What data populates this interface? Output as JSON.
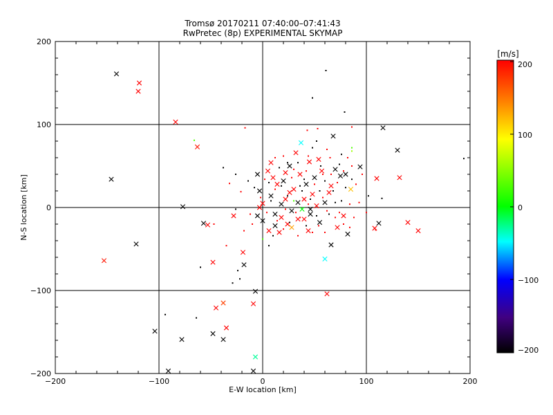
{
  "chart_data": {
    "type": "scatter",
    "title": "Tromsø 20170211 07:40:00–07:41:43",
    "subtitle": "RwPretec (8p) EXPERIMENTAL SKYMAP",
    "xlabel": "E-W location [km]",
    "ylabel": "N-S location [km]",
    "xlim": [
      -200,
      200
    ],
    "ylim": [
      -200,
      200
    ],
    "xticks": [
      "−200",
      "−100",
      "0",
      "100",
      "200"
    ],
    "yticks": [
      "−200",
      "−100",
      "0",
      "100",
      "200"
    ],
    "grid": true,
    "colorbar": {
      "label": "[m/s]",
      "range": [
        -200,
        200
      ],
      "ticks": [
        "200",
        "100",
        "0",
        "−100",
        "−200"
      ],
      "colors": [
        "#ff0000",
        "#ff8000",
        "#ffff00",
        "#00ff00",
        "#00ffff",
        "#0000ff",
        "#400080",
        "#000000"
      ]
    },
    "series_x_marks": [
      {
        "x": -141,
        "y": 161,
        "v": -200
      },
      {
        "x": -119,
        "y": 150,
        "v": 200
      },
      {
        "x": -120,
        "y": 140,
        "v": 200
      },
      {
        "x": -146,
        "y": 34,
        "v": -200
      },
      {
        "x": -122,
        "y": -44,
        "v": -200
      },
      {
        "x": -153,
        "y": -64,
        "v": 190
      },
      {
        "x": -84,
        "y": 103,
        "v": 200
      },
      {
        "x": -63,
        "y": 73,
        "v": 190
      },
      {
        "x": -77,
        "y": 1,
        "v": -200
      },
      {
        "x": -57,
        "y": -19,
        "v": -200
      },
      {
        "x": -53,
        "y": -21,
        "v": 200
      },
      {
        "x": -48,
        "y": -66,
        "v": 200
      },
      {
        "x": -45,
        "y": -121,
        "v": 200
      },
      {
        "x": -38,
        "y": -115,
        "v": 170
      },
      {
        "x": -35,
        "y": -145,
        "v": 200
      },
      {
        "x": -38,
        "y": -159,
        "v": -200
      },
      {
        "x": -48,
        "y": -152,
        "v": -200
      },
      {
        "x": -91,
        "y": -197,
        "v": -200
      },
      {
        "x": -78,
        "y": -159,
        "v": -200
      },
      {
        "x": -104,
        "y": -149,
        "v": -200
      },
      {
        "x": -28,
        "y": -10,
        "v": 200
      },
      {
        "x": -19,
        "y": -54,
        "v": 200
      },
      {
        "x": -18,
        "y": -69,
        "v": -200
      },
      {
        "x": -9,
        "y": -116,
        "v": 200
      },
      {
        "x": -7,
        "y": -101,
        "v": -200
      },
      {
        "x": -9,
        "y": -197,
        "v": -200
      },
      {
        "x": -7,
        "y": -180,
        "v": -30
      },
      {
        "x": -5,
        "y": 40,
        "v": -200
      },
      {
        "x": -3,
        "y": 20,
        "v": -200
      },
      {
        "x": 0,
        "y": 5,
        "v": 200
      },
      {
        "x": 5,
        "y": 44,
        "v": 200
      },
      {
        "x": 8,
        "y": 14,
        "v": -200
      },
      {
        "x": 12,
        "y": -8,
        "v": -200
      },
      {
        "x": 14,
        "y": 28,
        "v": 200
      },
      {
        "x": 18,
        "y": -12,
        "v": 200
      },
      {
        "x": 20,
        "y": 32,
        "v": -200
      },
      {
        "x": 22,
        "y": 10,
        "v": 200
      },
      {
        "x": 24,
        "y": -20,
        "v": 200
      },
      {
        "x": 26,
        "y": 50,
        "v": -200
      },
      {
        "x": 28,
        "y": -4,
        "v": -200
      },
      {
        "x": 30,
        "y": 22,
        "v": 200
      },
      {
        "x": 32,
        "y": 66,
        "v": 200
      },
      {
        "x": 34,
        "y": 6,
        "v": -200
      },
      {
        "x": 36,
        "y": 40,
        "v": 200
      },
      {
        "x": 37,
        "y": 78,
        "v": -50
      },
      {
        "x": 40,
        "y": -14,
        "v": 200
      },
      {
        "x": 42,
        "y": 28,
        "v": -200
      },
      {
        "x": 45,
        "y": 55,
        "v": 200
      },
      {
        "x": 46,
        "y": -8,
        "v": -200
      },
      {
        "x": 48,
        "y": 16,
        "v": 200
      },
      {
        "x": 50,
        "y": 36,
        "v": -200
      },
      {
        "x": 52,
        "y": 2,
        "v": 200
      },
      {
        "x": 55,
        "y": -18,
        "v": -200
      },
      {
        "x": 57,
        "y": 44,
        "v": 200
      },
      {
        "x": 60,
        "y": -62,
        "v": -50
      },
      {
        "x": 62,
        "y": -104,
        "v": 200
      },
      {
        "x": 64,
        "y": 18,
        "v": 200
      },
      {
        "x": 66,
        "y": -45,
        "v": -200
      },
      {
        "x": 68,
        "y": 86,
        "v": -200
      },
      {
        "x": 70,
        "y": 46,
        "v": -200
      },
      {
        "x": 72,
        "y": -24,
        "v": 200
      },
      {
        "x": 75,
        "y": 38,
        "v": -200
      },
      {
        "x": 78,
        "y": -10,
        "v": 200
      },
      {
        "x": 80,
        "y": 40,
        "v": -200
      },
      {
        "x": 82,
        "y": -32,
        "v": -200
      },
      {
        "x": 85,
        "y": 22,
        "v": 120
      },
      {
        "x": 94,
        "y": 49,
        "v": -200
      },
      {
        "x": 108,
        "y": -25,
        "v": 200
      },
      {
        "x": 110,
        "y": 35,
        "v": 200
      },
      {
        "x": 112,
        "y": -19,
        "v": -200
      },
      {
        "x": 116,
        "y": 96,
        "v": -200
      },
      {
        "x": 130,
        "y": 69,
        "v": -200
      },
      {
        "x": 132,
        "y": 36,
        "v": 200
      },
      {
        "x": 140,
        "y": -18,
        "v": 200
      },
      {
        "x": 150,
        "y": -28,
        "v": 200
      },
      {
        "x": 0,
        "y": -16,
        "v": -200
      },
      {
        "x": -5,
        "y": -10,
        "v": -200
      },
      {
        "x": 6,
        "y": -28,
        "v": 200
      },
      {
        "x": 16,
        "y": -30,
        "v": 200
      },
      {
        "x": 28,
        "y": -24,
        "v": 130
      },
      {
        "x": 44,
        "y": -28,
        "v": 200
      },
      {
        "x": 12,
        "y": -22,
        "v": -200
      },
      {
        "x": 34,
        "y": -14,
        "v": 200
      },
      {
        "x": 22,
        "y": 42,
        "v": 200
      },
      {
        "x": 8,
        "y": 54,
        "v": 200
      },
      {
        "x": -3,
        "y": 0,
        "v": 200
      },
      {
        "x": 18,
        "y": 4,
        "v": -200
      },
      {
        "x": 26,
        "y": 18,
        "v": 200
      },
      {
        "x": 54,
        "y": 58,
        "v": 200
      },
      {
        "x": 38,
        "y": -2,
        "v": 0
      },
      {
        "x": 46,
        "y": -2,
        "v": -200
      },
      {
        "x": 66,
        "y": 26,
        "v": 200
      },
      {
        "x": 60,
        "y": 6,
        "v": -200
      },
      {
        "x": 10,
        "y": 36,
        "v": 200
      },
      {
        "x": 40,
        "y": 10,
        "v": 200
      }
    ],
    "series_dots": [
      {
        "x": 61,
        "y": 165,
        "v": -200
      },
      {
        "x": 48,
        "y": 132,
        "v": -200
      },
      {
        "x": 79,
        "y": 115,
        "v": -200
      },
      {
        "x": 53,
        "y": 95,
        "v": 200
      },
      {
        "x": -17,
        "y": 96,
        "v": 200
      },
      {
        "x": 43,
        "y": 93,
        "v": 200
      },
      {
        "x": 86,
        "y": 97,
        "v": 200
      },
      {
        "x": -66,
        "y": 81,
        "v": 30
      },
      {
        "x": 86,
        "y": 72,
        "v": 30
      },
      {
        "x": 194,
        "y": 59,
        "v": -200
      },
      {
        "x": -38,
        "y": 48,
        "v": -200
      },
      {
        "x": -26,
        "y": 40,
        "v": -200
      },
      {
        "x": -32,
        "y": 29,
        "v": 200
      },
      {
        "x": -21,
        "y": 19,
        "v": 200
      },
      {
        "x": -26,
        "y": -2,
        "v": -200
      },
      {
        "x": -18,
        "y": -28,
        "v": 200
      },
      {
        "x": -35,
        "y": -46,
        "v": 200
      },
      {
        "x": -22,
        "y": -86,
        "v": -200
      },
      {
        "x": -24,
        "y": -76,
        "v": -200
      },
      {
        "x": -29,
        "y": -91,
        "v": -200
      },
      {
        "x": -60,
        "y": -72,
        "v": -200
      },
      {
        "x": -64,
        "y": -133,
        "v": -200
      },
      {
        "x": -94,
        "y": -129,
        "v": -200
      },
      {
        "x": 0,
        "y": -38,
        "v": 30
      },
      {
        "x": -47,
        "y": -20,
        "v": 200
      },
      {
        "x": 6,
        "y": 30,
        "v": -200
      },
      {
        "x": 12,
        "y": 22,
        "v": 200
      },
      {
        "x": 16,
        "y": 48,
        "v": -200
      },
      {
        "x": 20,
        "y": 62,
        "v": 200
      },
      {
        "x": 24,
        "y": 14,
        "v": -200
      },
      {
        "x": 28,
        "y": 36,
        "v": 200
      },
      {
        "x": 32,
        "y": -6,
        "v": 200
      },
      {
        "x": 34,
        "y": 54,
        "v": -200
      },
      {
        "x": 38,
        "y": 20,
        "v": -200
      },
      {
        "x": 42,
        "y": 44,
        "v": 200
      },
      {
        "x": 44,
        "y": 4,
        "v": 200
      },
      {
        "x": 48,
        "y": 72,
        "v": -200
      },
      {
        "x": 50,
        "y": 28,
        "v": 200
      },
      {
        "x": 52,
        "y": -10,
        "v": -200
      },
      {
        "x": 56,
        "y": 50,
        "v": -200
      },
      {
        "x": 58,
        "y": 12,
        "v": 200
      },
      {
        "x": 60,
        "y": 32,
        "v": -200
      },
      {
        "x": 62,
        "y": -4,
        "v": 200
      },
      {
        "x": 65,
        "y": 60,
        "v": 200
      },
      {
        "x": 68,
        "y": 20,
        "v": -200
      },
      {
        "x": 70,
        "y": -12,
        "v": 200
      },
      {
        "x": 72,
        "y": 30,
        "v": 200
      },
      {
        "x": 74,
        "y": 52,
        "v": -200
      },
      {
        "x": 76,
        "y": 8,
        "v": -200
      },
      {
        "x": 78,
        "y": -20,
        "v": 200
      },
      {
        "x": 80,
        "y": 24,
        "v": -200
      },
      {
        "x": 82,
        "y": 60,
        "v": 200
      },
      {
        "x": 84,
        "y": 4,
        "v": 200
      },
      {
        "x": 86,
        "y": 34,
        "v": -200
      },
      {
        "x": 88,
        "y": -12,
        "v": 200
      },
      {
        "x": 90,
        "y": 28,
        "v": 200
      },
      {
        "x": 93,
        "y": 6,
        "v": 200
      },
      {
        "x": 86,
        "y": 68,
        "v": 60
      },
      {
        "x": 102,
        "y": 14,
        "v": -200
      },
      {
        "x": 109,
        "y": -27,
        "v": 200
      },
      {
        "x": 115,
        "y": 11,
        "v": -200
      },
      {
        "x": 4,
        "y": -6,
        "v": 200
      },
      {
        "x": 8,
        "y": 8,
        "v": -200
      },
      {
        "x": 14,
        "y": -16,
        "v": 200
      },
      {
        "x": 18,
        "y": 26,
        "v": -200
      },
      {
        "x": 22,
        "y": -2,
        "v": 200
      },
      {
        "x": 26,
        "y": -18,
        "v": -200
      },
      {
        "x": 30,
        "y": 46,
        "v": 200
      },
      {
        "x": 36,
        "y": -12,
        "v": 200
      },
      {
        "x": 40,
        "y": 34,
        "v": -200
      },
      {
        "x": 46,
        "y": 10,
        "v": -200
      },
      {
        "x": 54,
        "y": -22,
        "v": 200
      },
      {
        "x": 58,
        "y": 40,
        "v": 200
      },
      {
        "x": 64,
        "y": -8,
        "v": -200
      },
      {
        "x": 66,
        "y": 40,
        "v": 200
      },
      {
        "x": -12,
        "y": -8,
        "v": 200
      },
      {
        "x": -8,
        "y": 24,
        "v": -200
      },
      {
        "x": -2,
        "y": 12,
        "v": 200
      },
      {
        "x": 2,
        "y": 34,
        "v": 200
      },
      {
        "x": 10,
        "y": -34,
        "v": -200
      },
      {
        "x": 20,
        "y": -26,
        "v": 200
      },
      {
        "x": 30,
        "y": 8,
        "v": 30
      },
      {
        "x": 36,
        "y": 26,
        "v": -200
      },
      {
        "x": 42,
        "y": -22,
        "v": -200
      },
      {
        "x": 48,
        "y": -30,
        "v": 200
      },
      {
        "x": 55,
        "y": 20,
        "v": -200
      },
      {
        "x": 60,
        "y": -30,
        "v": 200
      },
      {
        "x": 70,
        "y": 6,
        "v": -200
      },
      {
        "x": 74,
        "y": -6,
        "v": 200
      },
      {
        "x": 78,
        "y": 44,
        "v": 200
      },
      {
        "x": 84,
        "y": -24,
        "v": 200
      },
      {
        "x": 96,
        "y": 40,
        "v": 200
      },
      {
        "x": 100,
        "y": -6,
        "v": 200
      },
      {
        "x": -14,
        "y": 32,
        "v": -200
      },
      {
        "x": -10,
        "y": -20,
        "v": 200
      },
      {
        "x": 12,
        "y": 60,
        "v": 200
      },
      {
        "x": 24,
        "y": 54,
        "v": -200
      },
      {
        "x": 44,
        "y": 62,
        "v": 200
      },
      {
        "x": 52,
        "y": 80,
        "v": -200
      },
      {
        "x": 62,
        "y": 70,
        "v": 200
      },
      {
        "x": 76,
        "y": 64,
        "v": -200
      },
      {
        "x": 86,
        "y": 50,
        "v": 200
      },
      {
        "x": 34,
        "y": -34,
        "v": 200
      },
      {
        "x": 6,
        "y": -46,
        "v": -200
      }
    ]
  }
}
